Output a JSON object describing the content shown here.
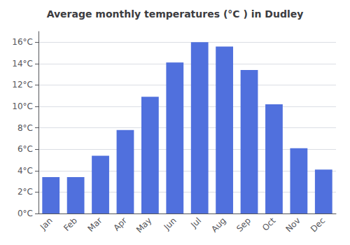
{
  "chart_data": {
    "type": "bar",
    "title": "Average monthly temperatures (°C ) in Dudley",
    "categories": [
      "Jan",
      "Feb",
      "Mar",
      "Apr",
      "May",
      "Jun",
      "Jul",
      "Aug",
      "Sep",
      "Oct",
      "Nov",
      "Dec"
    ],
    "values": [
      3.4,
      3.4,
      5.4,
      7.8,
      10.9,
      14.1,
      16.0,
      15.6,
      13.4,
      10.2,
      6.1,
      4.1
    ],
    "ylim": [
      0,
      17
    ],
    "yticks": [
      {
        "value": 0,
        "label": "0°C"
      },
      {
        "value": 2,
        "label": "2°C"
      },
      {
        "value": 4,
        "label": "4°C"
      },
      {
        "value": 6,
        "label": "6°C"
      },
      {
        "value": 8,
        "label": "8°C"
      },
      {
        "value": 10,
        "label": "10°C"
      },
      {
        "value": 12,
        "label": "12°C"
      },
      {
        "value": 14,
        "label": "14°C"
      },
      {
        "value": 16,
        "label": "16°C"
      }
    ],
    "grid": true
  }
}
